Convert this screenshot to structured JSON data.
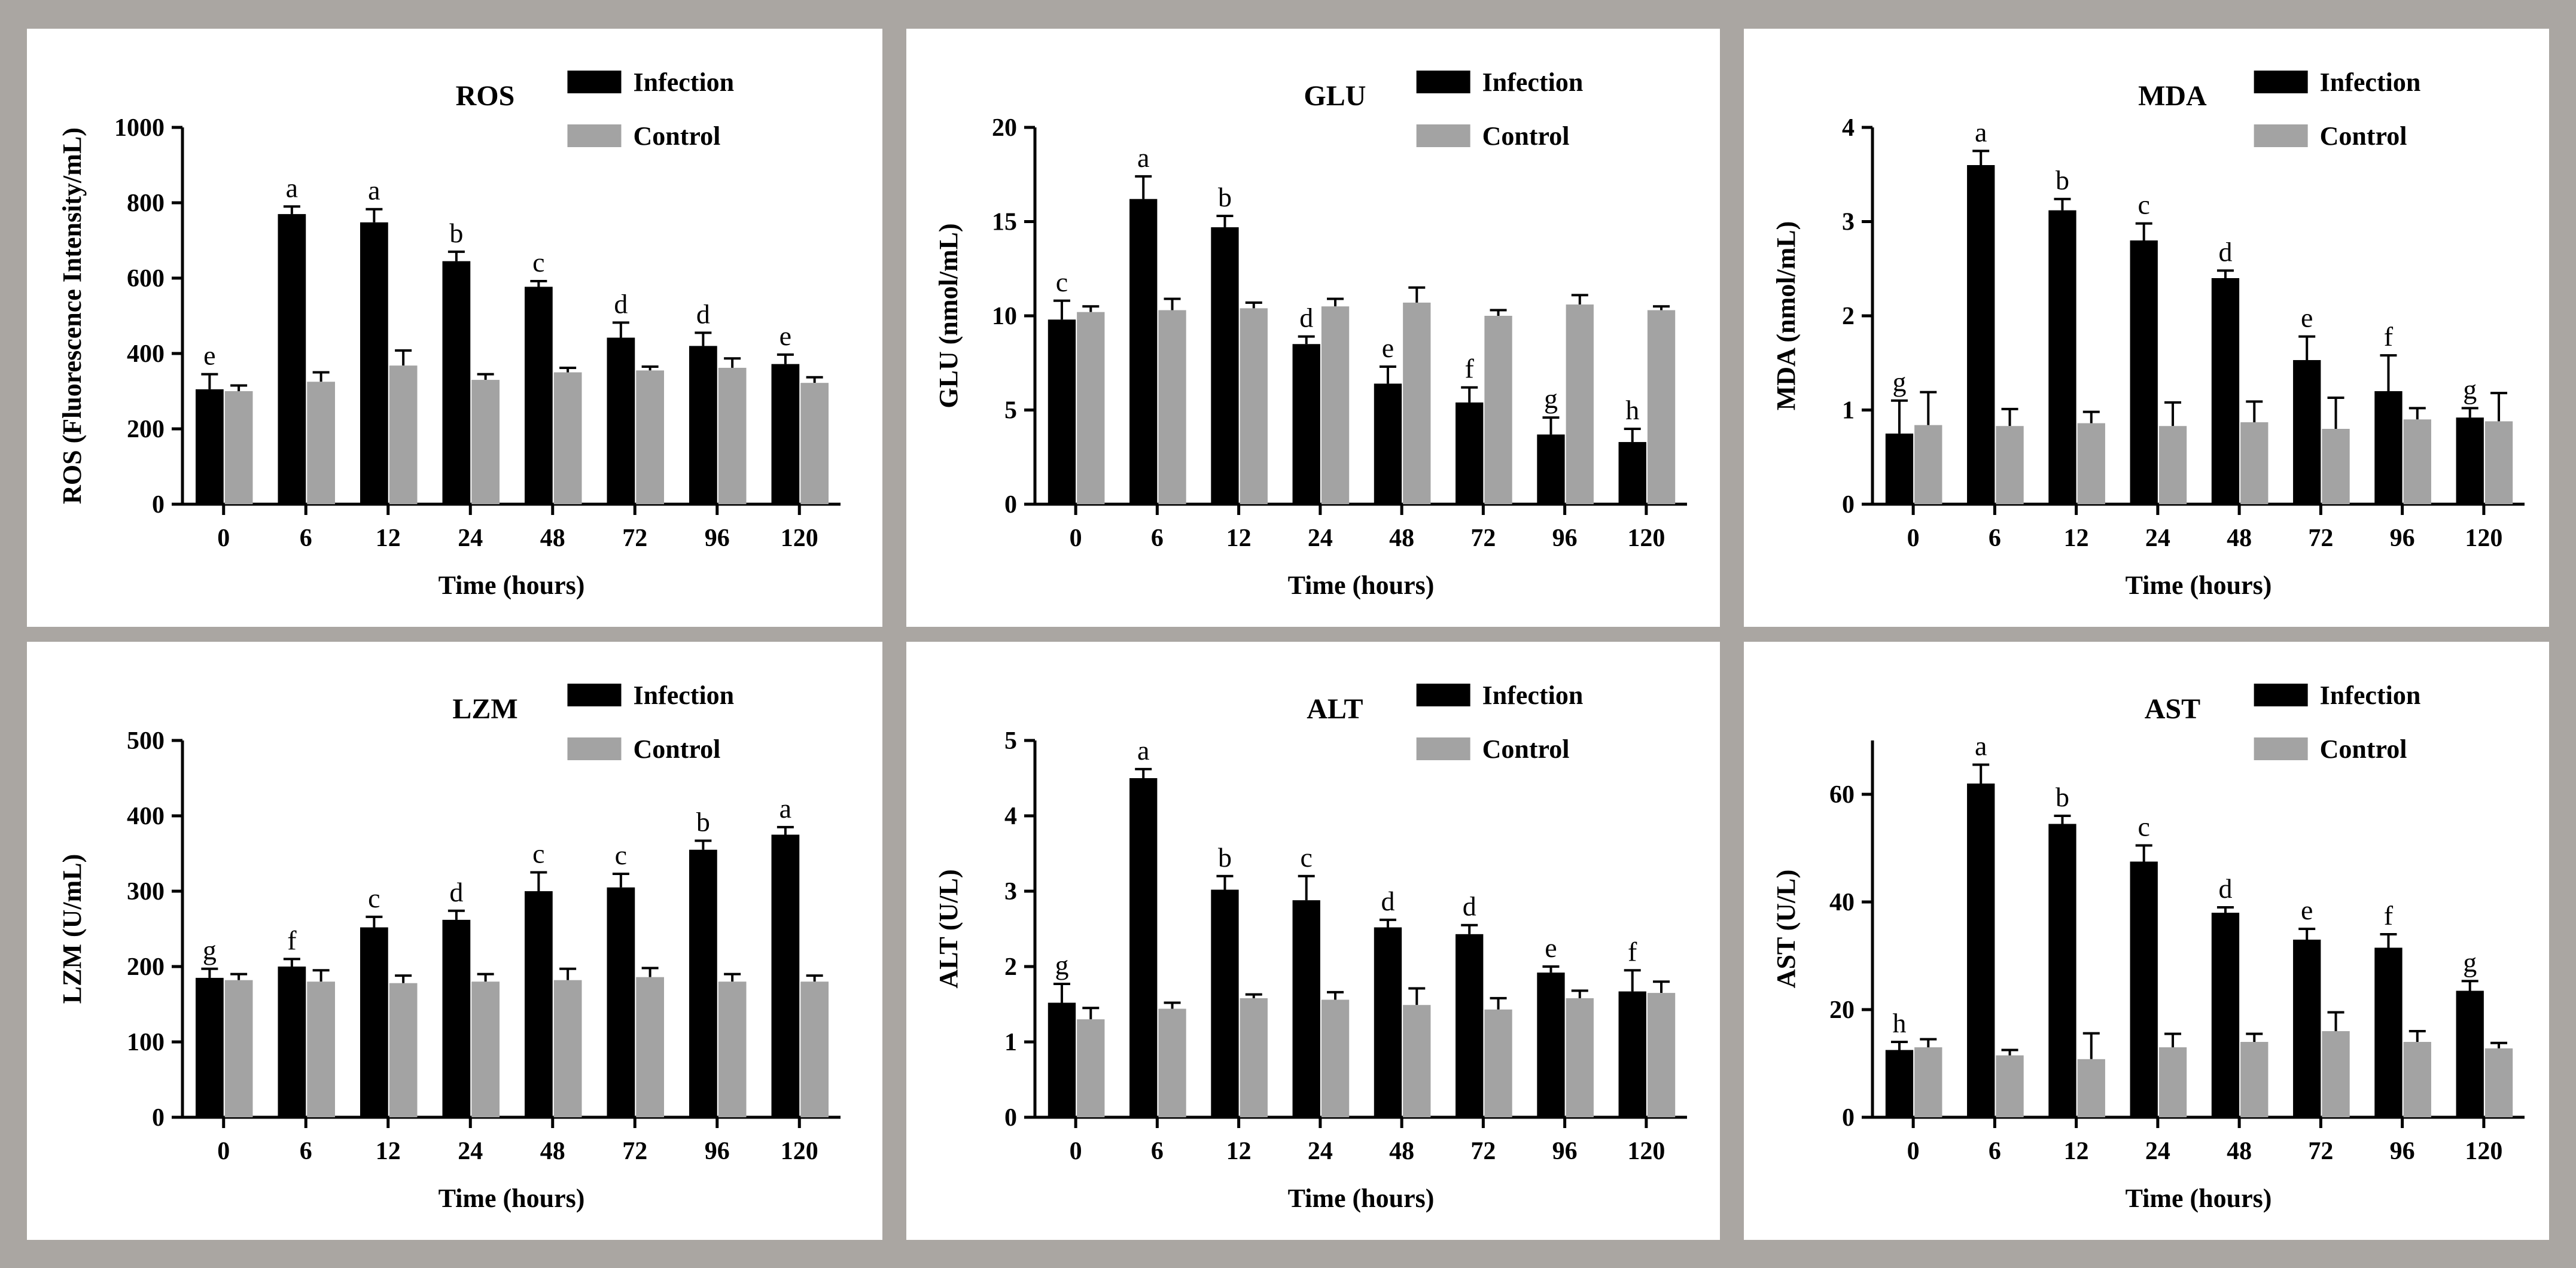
{
  "colors": {
    "infection": "#000000",
    "control": "#a3a3a3",
    "frame": "#aaa6a2"
  },
  "legend": {
    "series1": "Infection",
    "series2": "Control"
  },
  "chart_data": [
    {
      "type": "bar",
      "title": "ROS",
      "xlabel": "Time (hours)",
      "ylabel": "ROS (Fluorescence Intensity/mL)",
      "ylim": [
        0,
        1000
      ],
      "yticks": [
        "0",
        "200",
        "400",
        "600",
        "800",
        "1000"
      ],
      "categories": [
        "0",
        "6",
        "12",
        "24",
        "48",
        "72",
        "96",
        "120"
      ],
      "series": [
        {
          "name": "Infection",
          "values": [
            305,
            770,
            748,
            645,
            577,
            442,
            420,
            372
          ],
          "errors": [
            40,
            20,
            35,
            25,
            15,
            40,
            35,
            25
          ]
        },
        {
          "name": "Control",
          "values": [
            300,
            325,
            368,
            330,
            350,
            355,
            362,
            322
          ],
          "errors": [
            15,
            25,
            40,
            15,
            12,
            10,
            25,
            15
          ]
        }
      ],
      "labels": [
        "e",
        "a",
        "a",
        "b",
        "c",
        "d",
        "d",
        "e"
      ]
    },
    {
      "type": "bar",
      "title": "GLU",
      "xlabel": "Time (hours)",
      "ylabel": "GLU (nmol/mL)",
      "ylim": [
        0,
        20
      ],
      "yticks": [
        "0",
        "5",
        "10",
        "15",
        "20"
      ],
      "categories": [
        "0",
        "6",
        "12",
        "24",
        "48",
        "72",
        "96",
        "120"
      ],
      "series": [
        {
          "name": "Infection",
          "values": [
            9.8,
            16.2,
            14.7,
            8.5,
            6.4,
            5.4,
            3.7,
            3.3
          ],
          "errors": [
            1.0,
            1.2,
            0.6,
            0.4,
            0.9,
            0.8,
            0.9,
            0.7
          ]
        },
        {
          "name": "Control",
          "values": [
            10.2,
            10.3,
            10.4,
            10.5,
            10.7,
            10.0,
            10.6,
            10.3
          ],
          "errors": [
            0.3,
            0.6,
            0.3,
            0.4,
            0.8,
            0.3,
            0.5,
            0.2
          ]
        }
      ],
      "labels": [
        "c",
        "a",
        "b",
        "d",
        "e",
        "f",
        "g",
        "h"
      ]
    },
    {
      "type": "bar",
      "title": "MDA",
      "xlabel": "Time (hours)",
      "ylabel": "MDA (nmol/mL)",
      "ylim": [
        0,
        4
      ],
      "yticks": [
        "0",
        "1",
        "2",
        "3",
        "4"
      ],
      "categories": [
        "0",
        "6",
        "12",
        "24",
        "48",
        "72",
        "96",
        "120"
      ],
      "series": [
        {
          "name": "Infection",
          "values": [
            0.75,
            3.6,
            3.12,
            2.8,
            2.4,
            1.53,
            1.2,
            0.92
          ],
          "errors": [
            0.35,
            0.15,
            0.12,
            0.18,
            0.08,
            0.25,
            0.38,
            0.1
          ]
        },
        {
          "name": "Control",
          "values": [
            0.84,
            0.83,
            0.86,
            0.83,
            0.87,
            0.8,
            0.9,
            0.88
          ],
          "errors": [
            0.35,
            0.18,
            0.12,
            0.25,
            0.22,
            0.33,
            0.12,
            0.3
          ]
        }
      ],
      "labels": [
        "g",
        "a",
        "b",
        "c",
        "d",
        "e",
        "f",
        "g"
      ]
    },
    {
      "type": "bar",
      "title": "LZM",
      "xlabel": "Time (hours)",
      "ylabel": "LZM (U/mL)",
      "ylim": [
        0,
        500
      ],
      "yticks": [
        "0",
        "100",
        "200",
        "300",
        "400",
        "500"
      ],
      "categories": [
        "0",
        "6",
        "12",
        "24",
        "48",
        "72",
        "96",
        "120"
      ],
      "series": [
        {
          "name": "Infection",
          "values": [
            185,
            200,
            252,
            262,
            300,
            305,
            355,
            375
          ],
          "errors": [
            12,
            10,
            14,
            12,
            25,
            18,
            12,
            10
          ]
        },
        {
          "name": "Control",
          "values": [
            182,
            180,
            178,
            180,
            182,
            186,
            180,
            180
          ],
          "errors": [
            8,
            15,
            10,
            10,
            15,
            12,
            10,
            8
          ]
        }
      ],
      "labels": [
        "g",
        "f",
        "c",
        "d",
        "c",
        "c",
        "b",
        "a"
      ]
    },
    {
      "type": "bar",
      "title": "ALT",
      "xlabel": "Time (hours)",
      "ylabel": "ALT (U/L)",
      "ylim": [
        0,
        5
      ],
      "yticks": [
        "0",
        "1",
        "2",
        "3",
        "4",
        "5"
      ],
      "categories": [
        "0",
        "6",
        "12",
        "24",
        "48",
        "72",
        "96",
        "120"
      ],
      "series": [
        {
          "name": "Infection",
          "values": [
            1.52,
            4.5,
            3.02,
            2.88,
            2.52,
            2.43,
            1.92,
            1.67
          ],
          "errors": [
            0.25,
            0.12,
            0.18,
            0.32,
            0.1,
            0.12,
            0.08,
            0.28
          ]
        },
        {
          "name": "Control",
          "values": [
            1.3,
            1.44,
            1.58,
            1.56,
            1.49,
            1.43,
            1.58,
            1.65
          ],
          "errors": [
            0.15,
            0.08,
            0.05,
            0.1,
            0.22,
            0.15,
            0.1,
            0.15
          ]
        }
      ],
      "labels": [
        "g",
        "a",
        "b",
        "c",
        "d",
        "d",
        "e",
        "f"
      ]
    },
    {
      "type": "bar",
      "title": "AST",
      "xlabel": "Time (hours)",
      "ylabel": "AST (U/L)",
      "ylim": [
        0,
        70
      ],
      "yticks": [
        "0",
        "20",
        "40",
        "60"
      ],
      "categories": [
        "0",
        "6",
        "12",
        "24",
        "48",
        "72",
        "96",
        "120"
      ],
      "series": [
        {
          "name": "Infection",
          "values": [
            12.5,
            62,
            54.5,
            47.5,
            38,
            33,
            31.5,
            23.5
          ],
          "errors": [
            1.5,
            3.5,
            1.5,
            3.0,
            1.0,
            2.0,
            2.5,
            1.8
          ]
        },
        {
          "name": "Control",
          "values": [
            13,
            11.5,
            10.8,
            13,
            14,
            16,
            14,
            12.8
          ],
          "errors": [
            1.5,
            1.0,
            4.8,
            2.5,
            1.5,
            3.5,
            2.0,
            1.0
          ]
        }
      ],
      "labels": [
        "h",
        "a",
        "b",
        "c",
        "d",
        "e",
        "f",
        "g"
      ]
    }
  ]
}
